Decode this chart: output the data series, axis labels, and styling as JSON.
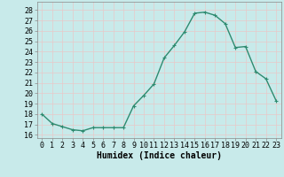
{
  "x": [
    0,
    1,
    2,
    3,
    4,
    5,
    6,
    7,
    8,
    9,
    10,
    11,
    12,
    13,
    14,
    15,
    16,
    17,
    18,
    19,
    20,
    21,
    22,
    23
  ],
  "y": [
    18.0,
    17.1,
    16.8,
    16.5,
    16.4,
    16.7,
    16.7,
    16.7,
    16.7,
    18.8,
    19.8,
    20.9,
    23.4,
    24.6,
    25.9,
    27.7,
    27.8,
    27.5,
    26.7,
    24.4,
    24.5,
    22.1,
    21.4,
    19.3
  ],
  "line_color": "#2e8b70",
  "marker": "+",
  "marker_size": 3,
  "bg_color": "#c8eaea",
  "grid_color": "#e8c8c8",
  "grid_color_minor": "#ffffff",
  "xlabel": "Humidex (Indice chaleur)",
  "ylabel_ticks": [
    16,
    17,
    18,
    19,
    20,
    21,
    22,
    23,
    24,
    25,
    26,
    27,
    28
  ],
  "ylim": [
    15.7,
    28.8
  ],
  "xlim": [
    -0.5,
    23.5
  ],
  "xticks": [
    0,
    1,
    2,
    3,
    4,
    5,
    6,
    7,
    8,
    9,
    10,
    11,
    12,
    13,
    14,
    15,
    16,
    17,
    18,
    19,
    20,
    21,
    22,
    23
  ],
  "xtick_labels": [
    "0",
    "1",
    "2",
    "3",
    "4",
    "5",
    "6",
    "7",
    "8",
    "9",
    "10",
    "11",
    "12",
    "13",
    "14",
    "15",
    "16",
    "17",
    "18",
    "19",
    "20",
    "21",
    "22",
    "23"
  ],
  "line_width": 1.0,
  "font_size_xlabel": 7,
  "font_size_ticks": 6
}
